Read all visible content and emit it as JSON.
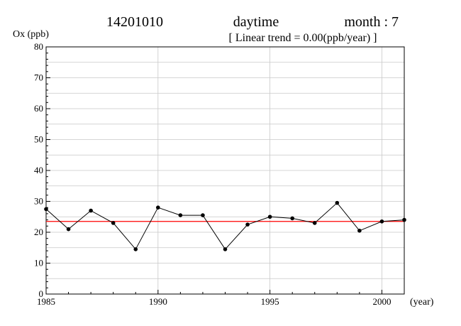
{
  "chart_data": {
    "type": "line",
    "station": "14201010",
    "period": "daytime",
    "month_label": "month : 7",
    "subtitle": "[ Linear trend = 0.00(ppb/year) ]",
    "ylabel": "Ox (ppb)",
    "xlabel": "(year)",
    "xlim": [
      1985,
      2001
    ],
    "ylim": [
      0,
      80
    ],
    "x_ticks": [
      1985,
      1990,
      1995,
      2000
    ],
    "y_ticks": [
      0,
      10,
      20,
      30,
      40,
      50,
      60,
      70,
      80
    ],
    "grid": true,
    "series": [
      {
        "x": [
          1985,
          1986,
          1987,
          1988,
          1989,
          1990,
          1991,
          1992,
          1993,
          1994,
          1995,
          1996,
          1997,
          1998,
          1999,
          2000,
          2001
        ],
        "values": [
          27.5,
          21.0,
          27.0,
          23.0,
          14.5,
          28.0,
          25.5,
          25.5,
          14.5,
          22.5,
          25.0,
          24.5,
          23.0,
          29.5,
          20.5,
          23.5,
          24.0
        ],
        "color": "#000000"
      }
    ],
    "trend": {
      "values": [
        23.5,
        23.5
      ],
      "color": "#ff0000"
    }
  }
}
